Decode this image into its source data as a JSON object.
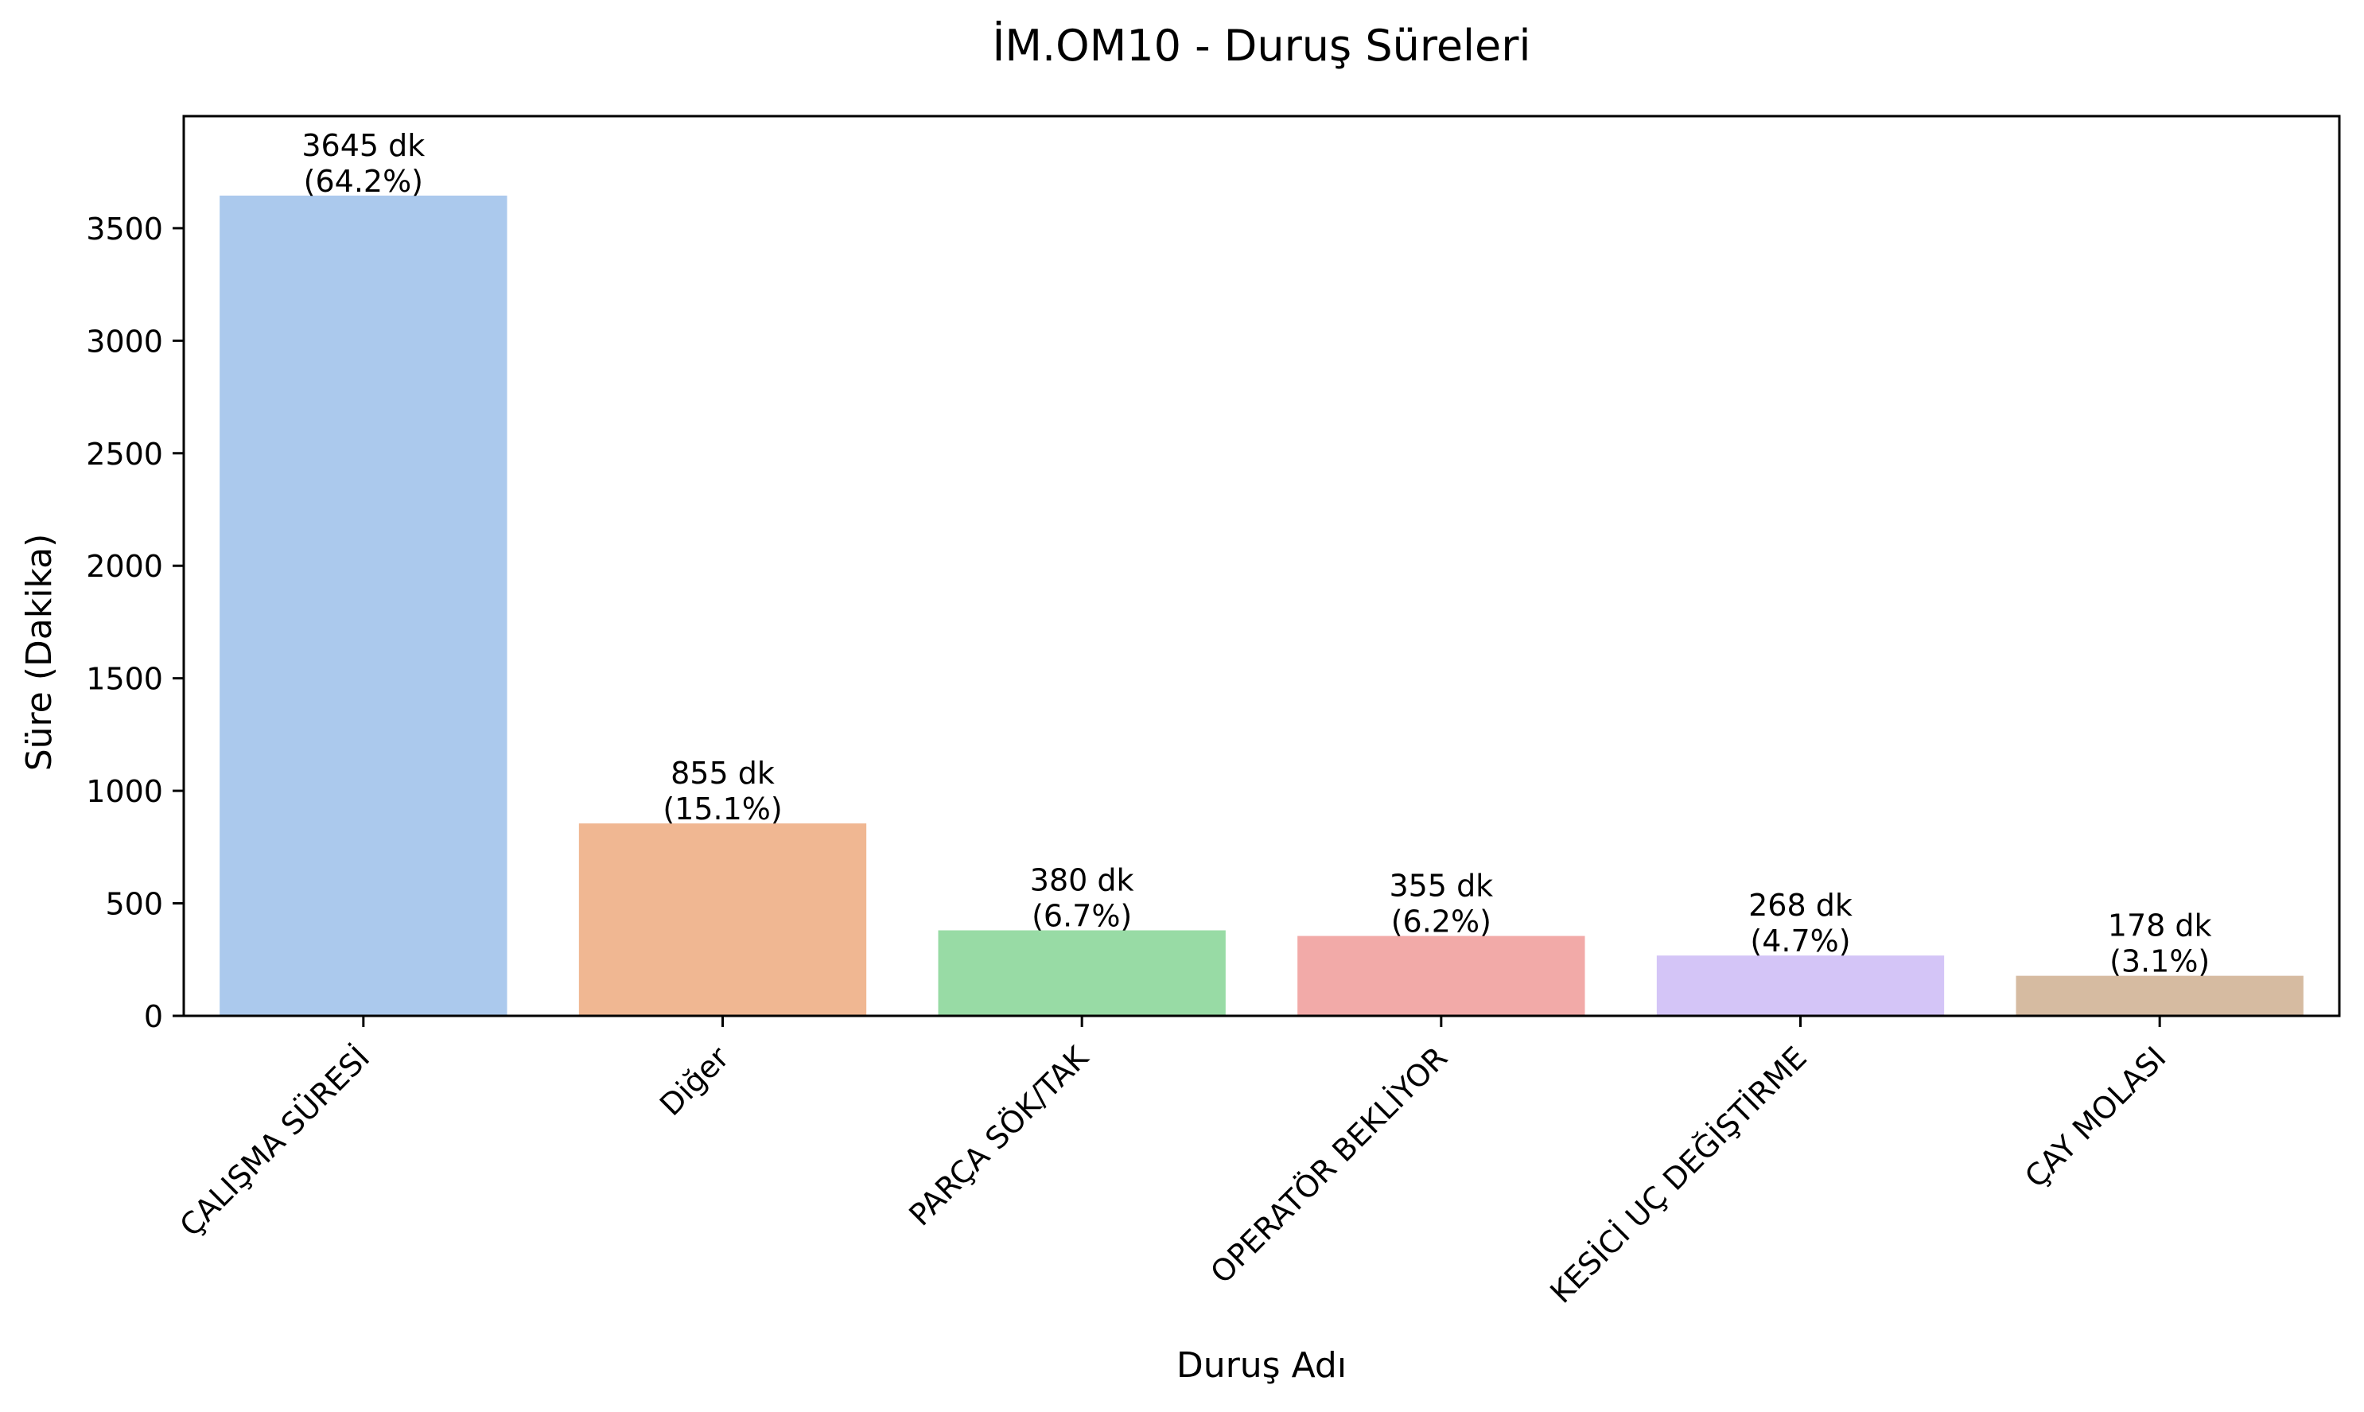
{
  "chart_data": {
    "type": "bar",
    "title": "İM.OM10 - Duruş Süreleri",
    "xlabel": "Duruş Adı",
    "ylabel": "Süre (Dakika)",
    "categories": [
      "ÇALIŞMA SÜRESİ",
      "Diğer",
      "PARÇA SÖK/TAK",
      "OPERATÖR BEKLİYOR",
      "KESİCİ UÇ DEĞİŞTİRME",
      "ÇAY MOLASI"
    ],
    "values": [
      3645,
      855,
      380,
      355,
      268,
      178
    ],
    "value_labels": [
      "3645 dk",
      "855 dk",
      "380 dk",
      "355 dk",
      "268 dk",
      "178 dk"
    ],
    "percent_labels": [
      "(64.2%)",
      "(15.1%)",
      "(6.7%)",
      "(6.2%)",
      "(4.7%)",
      "(3.1%)"
    ],
    "colors": [
      "#abc9ed",
      "#f0b792",
      "#98dba5",
      "#f2aaa8",
      "#d4c5f7",
      "#d6bba1"
    ],
    "ylim": [
      0,
      4000
    ],
    "yticks": [
      0,
      500,
      1000,
      1500,
      2000,
      2500,
      3000,
      3500
    ],
    "grid": false,
    "legend": "none"
  }
}
